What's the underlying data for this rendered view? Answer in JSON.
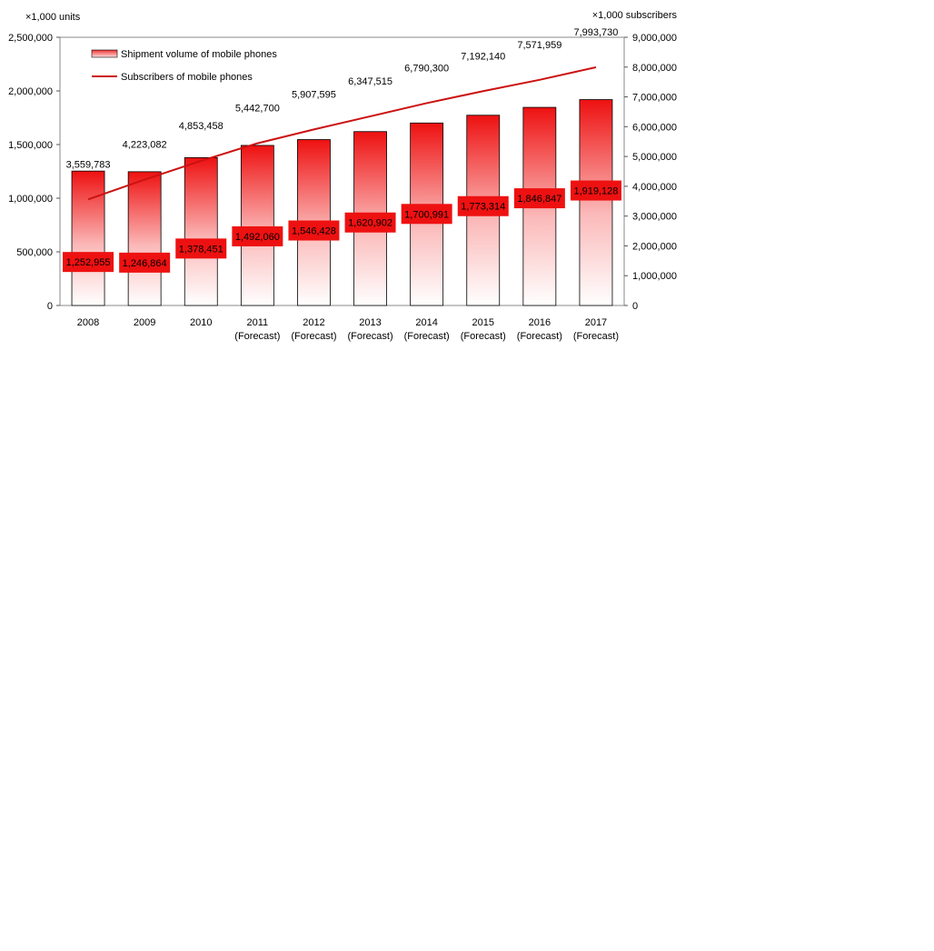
{
  "chart_data": {
    "type": "bar",
    "left_unit": "×1,000 units",
    "right_unit": "×1,000 subscribers",
    "categories": [
      "2008",
      "2009",
      "2010",
      "2011",
      "2012",
      "2013",
      "2014",
      "2015",
      "2016",
      "2017"
    ],
    "category_sublabels": [
      "",
      "",
      "",
      "(Forecast)",
      "(Forecast)",
      "(Forecast)",
      "(Forecast)",
      "(Forecast)",
      "(Forecast)",
      "(Forecast)"
    ],
    "y_left": {
      "min": 0,
      "max": 2500000,
      "ticks": [
        "0",
        "500,000",
        "1,000,000",
        "1,500,000",
        "2,000,000",
        "2,500,000"
      ]
    },
    "y_right": {
      "min": 0,
      "max": 9000000,
      "ticks": [
        "0",
        "1,000,000",
        "2,000,000",
        "3,000,000",
        "4,000,000",
        "5,000,000",
        "6,000,000",
        "7,000,000",
        "8,000,000",
        "9,000,000"
      ]
    },
    "series": [
      {
        "name": "Shipment volume of mobile phones",
        "type": "bar",
        "axis": "left",
        "values": [
          1252955,
          1246864,
          1378451,
          1492060,
          1546428,
          1620902,
          1700991,
          1773314,
          1846847,
          1919128
        ],
        "labels": [
          "1,252,955",
          "1,246,864",
          "1,378,451",
          "1,492,060",
          "1,546,428",
          "1,620,902",
          "1,700,991",
          "1,773,314",
          "1,846,847",
          "1,919,128"
        ]
      },
      {
        "name": "Subscribers of mobile phones",
        "type": "line",
        "axis": "right",
        "values": [
          3559783,
          4223082,
          4853458,
          5442700,
          5907595,
          6347515,
          6790300,
          7192140,
          7571959,
          7993730
        ],
        "labels": [
          "3,559,783",
          "4,223,082",
          "4,853,458",
          "5,442,700",
          "5,907,595",
          "6,347,515",
          "6,790,300",
          "7,192,140",
          "7,571,959",
          "7,993,730"
        ]
      }
    ],
    "legend_position": "top-left inside plot",
    "grid": false,
    "colors": {
      "bar_top": "#ee1111",
      "bar_bottom": "#ffffff",
      "line": "#cc1111",
      "label_box": "#ee1111"
    }
  }
}
